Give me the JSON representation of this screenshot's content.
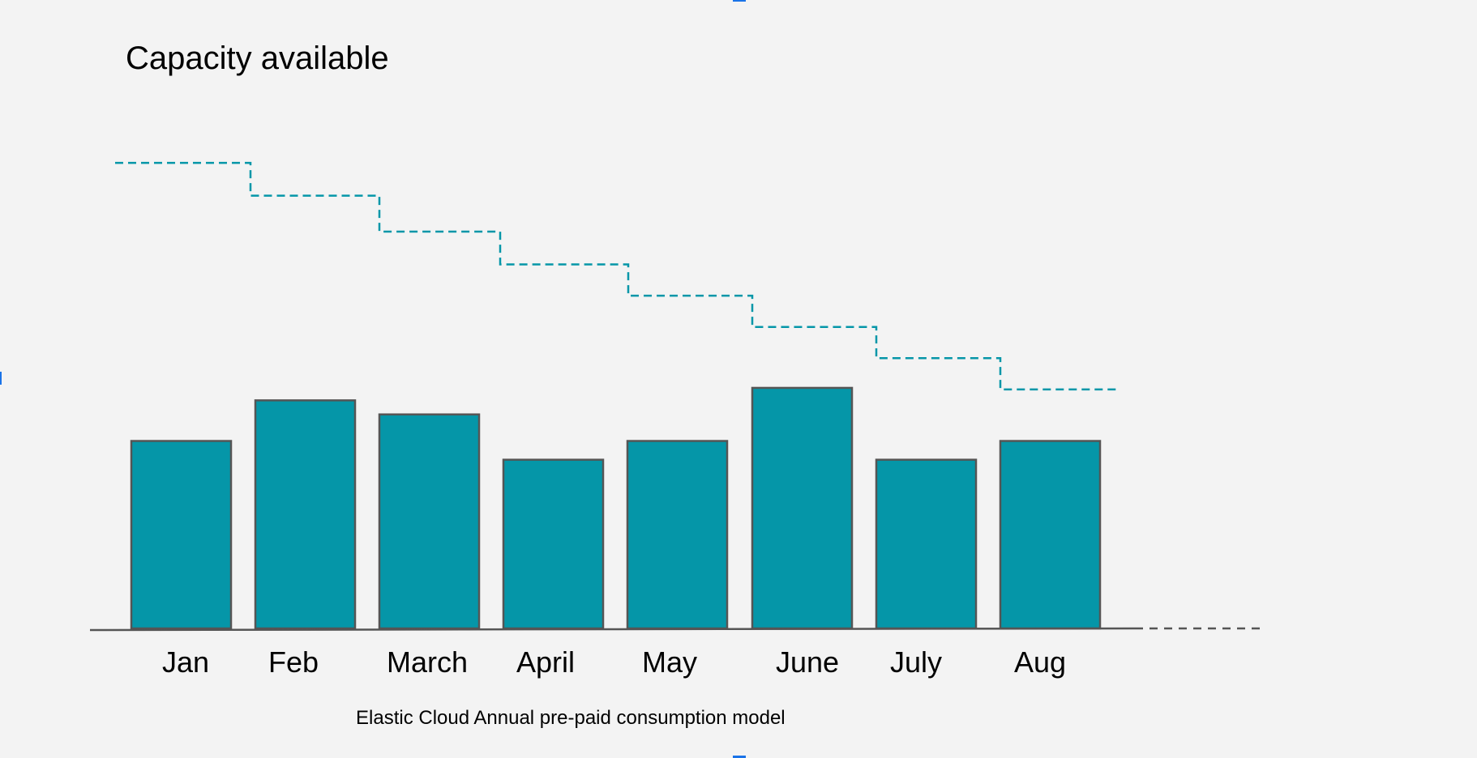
{
  "chart_data": {
    "type": "bar",
    "title": "Capacity available",
    "caption": "Elastic Cloud Annual pre-paid consumption model",
    "categories": [
      "Jan",
      "Feb",
      "March",
      "April",
      "May",
      "June",
      "July",
      "Aug"
    ],
    "series": [
      {
        "type": "bar",
        "values": [
          60,
          73,
          68.5,
          54,
          60,
          77,
          54,
          60
        ]
      },
      {
        "type": "step-line",
        "values": [
          149,
          138.5,
          127,
          116.5,
          106.5,
          96.5,
          86.5,
          76.5
        ]
      }
    ],
    "ylim": [
      0,
      176
    ],
    "grid": false,
    "legend": "none",
    "colors": {
      "bar_fill": "#0596a8",
      "bar_stroke": "#555555",
      "capacity_line": "#0596a8",
      "axis": "#555555",
      "background": "#f3f3f3"
    }
  }
}
